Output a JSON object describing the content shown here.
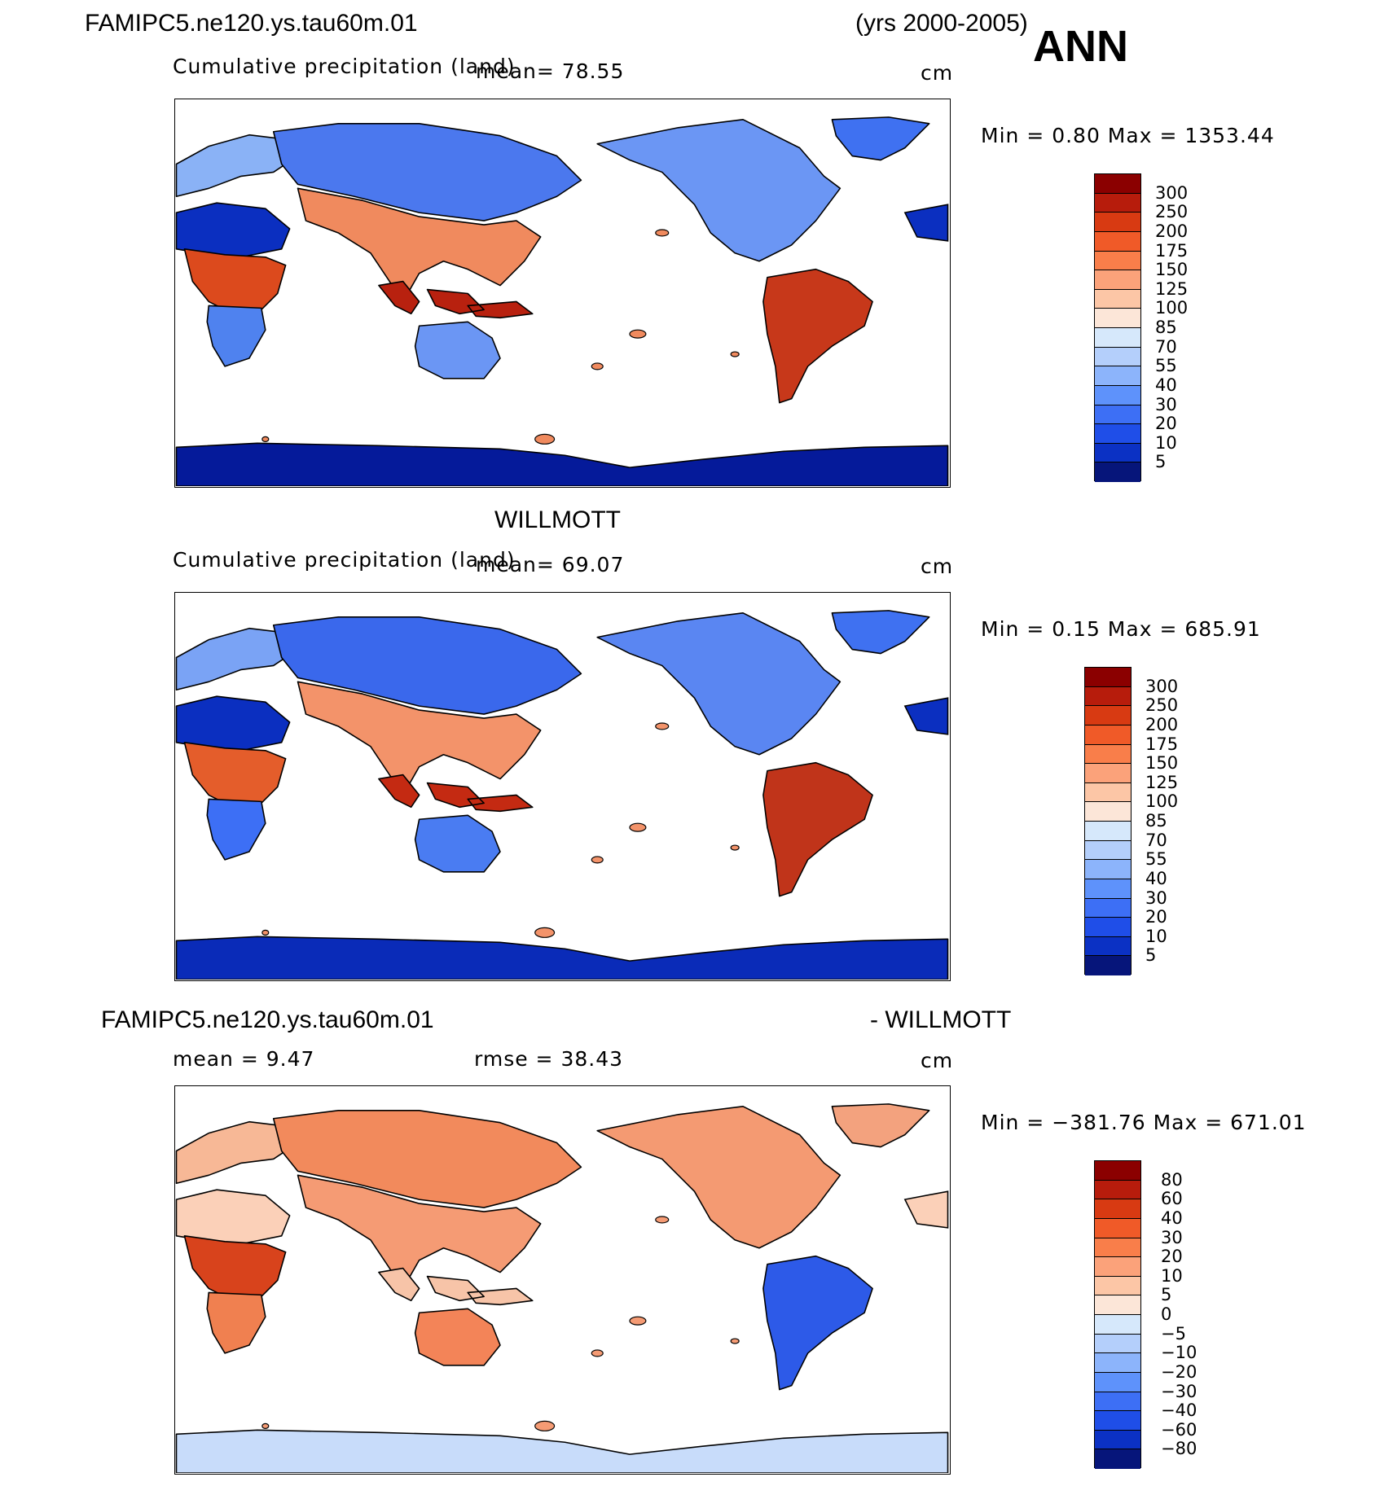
{
  "header": {
    "case_name": "FAMIPC5.ne120.ys.tau60m.01",
    "years": "(yrs 2000-2005)",
    "season": "ANN"
  },
  "panels": [
    {
      "top_title": "",
      "left_label": "Cumulative precipitation  (land)",
      "mean_label": "mean=   78.55",
      "units": "cm",
      "minmax": "Min  =    0.80  Max  =  1353.44",
      "levels": [
        "300",
        "250",
        "200",
        "175",
        "150",
        "125",
        "100",
        "85",
        "70",
        "55",
        "40",
        "30",
        "20",
        "10",
        "5"
      ],
      "colors": [
        "#8b0000",
        "#b71c0c",
        "#d83a12",
        "#f05a28",
        "#f97e4a",
        "#fba27a",
        "#fcc6a6",
        "#fce6d8",
        "#d6e8fb",
        "#b4cffb",
        "#8cb4fb",
        "#5e92fb",
        "#3d6ff5",
        "#1f4ee8",
        "#0b31c4",
        "#06157a"
      ],
      "continent_colors": {
        "north_america": "#6b96f4",
        "greenland": "#3f71f1",
        "south_america": "#c7381a",
        "africa_north": "#0b2fc0",
        "africa_central": "#dc4a1d",
        "africa_south": "#4f82ef",
        "europe": "#8ab2f6",
        "asia_north": "#4b78ee",
        "asia_south": "#f08a5e",
        "se_asia": "#b8210f",
        "australia": "#6b96f4",
        "antarctica": "#051a9a"
      }
    },
    {
      "top_title": "WILLMOTT",
      "left_label": "Cumulative precipitation  (land)",
      "mean_label": "mean=   69.07",
      "units": "cm",
      "minmax": "Min  =    0.15  Max  =  685.91",
      "levels": [
        "300",
        "250",
        "200",
        "175",
        "150",
        "125",
        "100",
        "85",
        "70",
        "55",
        "40",
        "30",
        "20",
        "10",
        "5"
      ],
      "colors": [
        "#8b0000",
        "#b71c0c",
        "#d83a12",
        "#f05a28",
        "#f97e4a",
        "#fba27a",
        "#fcc6a6",
        "#fce6d8",
        "#d6e8fb",
        "#b4cffb",
        "#8cb4fb",
        "#5e92fb",
        "#3d6ff5",
        "#1f4ee8",
        "#0b31c4",
        "#06157a"
      ],
      "continent_colors": {
        "north_america": "#5a86f2",
        "greenland": "#3f71f1",
        "south_america": "#c0341a",
        "africa_north": "#0b2fc0",
        "africa_central": "#e45d2b",
        "africa_south": "#3d6ff5",
        "europe": "#7aa3f5",
        "asia_north": "#3a68ec",
        "asia_south": "#f3936a",
        "se_asia": "#c42a12",
        "australia": "#4a7cf2",
        "antarctica": "#0a2bb8"
      }
    },
    {
      "top_title_left": "FAMIPC5.ne120.ys.tau60m.01",
      "top_title_right": "- WILLMOTT",
      "left_label": "mean  =     9.47",
      "mean_label": "rmse  =    38.43",
      "units": "cm",
      "minmax": "Min  = −381.76  Max  =  671.01",
      "levels": [
        "80",
        "60",
        "40",
        "30",
        "20",
        "10",
        "5",
        "0",
        "−5",
        "−10",
        "−20",
        "−30",
        "−40",
        "−60",
        "−80"
      ],
      "colors": [
        "#8b0000",
        "#b71c0c",
        "#d83a12",
        "#f05a28",
        "#f97e4a",
        "#fba27a",
        "#fcc6a6",
        "#fce6d8",
        "#d6e8fb",
        "#b4cffb",
        "#8cb4fb",
        "#5e92fb",
        "#3d6ff5",
        "#1f4ee8",
        "#0b31c4",
        "#06157a"
      ],
      "continent_colors": {
        "north_america": "#f49a72",
        "greenland": "#f3a27e",
        "south_america": "#2d5ae8",
        "africa_north": "#fbd0b8",
        "africa_central": "#d8431c",
        "africa_south": "#f08050",
        "europe": "#f7b896",
        "asia_north": "#f28a5c",
        "asia_south": "#f59b74",
        "se_asia": "#f7c4a8",
        "australia": "#f38458",
        "antarctica": "#c8dcfa"
      }
    }
  ]
}
